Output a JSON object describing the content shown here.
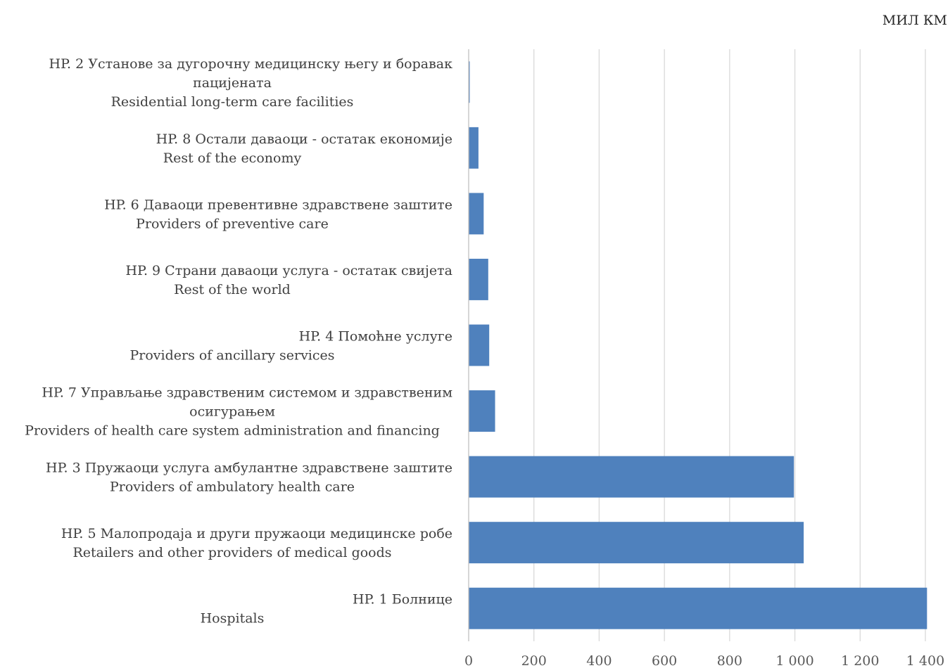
{
  "chart_data": {
    "type": "bar",
    "orientation": "horizontal",
    "unit": "МИЛ КМ",
    "xlim": [
      0,
      1400
    ],
    "ticks": [
      0,
      200,
      400,
      600,
      800,
      1000,
      1200,
      1400
    ],
    "tick_labels": [
      "0",
      "200",
      "400",
      "600",
      "800",
      "1 000",
      "1 200",
      "1 400"
    ],
    "grid": true,
    "legend": "none",
    "bar_color": "#4f81bd",
    "categories": [
      {
        "lines": [
          "HP. 2  Установе за дугорочну медицинску његу и боравак",
          "пацијената",
          "Residential long-term care facilities"
        ],
        "value": 3
      },
      {
        "lines": [
          "HP. 8 Остали даваоци - остатак економије",
          "Rest of the economy"
        ],
        "value": 30
      },
      {
        "lines": [
          "HP. 6 Даваоци превентивне здравствене заштите",
          "Providers of preventive care"
        ],
        "value": 46
      },
      {
        "lines": [
          "HP. 9 Страни даваоци услуга - остатак свијета",
          "Rest of the world"
        ],
        "value": 60
      },
      {
        "lines": [
          "HP. 4  Помоћне услуге",
          "Providers of ancillary services"
        ],
        "value": 63
      },
      {
        "lines": [
          "HP. 7 Управљање здравственим системом и здравственим",
          "осигурањем",
          "Providers of health care system administration and financing"
        ],
        "value": 81
      },
      {
        "lines": [
          "HP. 3  Пружаоци услуга амбулантне здравствене заштите",
          "Providers of ambulatory health care"
        ],
        "value": 997
      },
      {
        "lines": [
          "HP. 5 Малопродаја и други пружаоци медицинске робе",
          "Retailers and other providers of medical goods"
        ],
        "value": 1027
      },
      {
        "lines": [
          "HP. 1  Болнице",
          "Hospitals"
        ],
        "value": 1405
      }
    ]
  }
}
